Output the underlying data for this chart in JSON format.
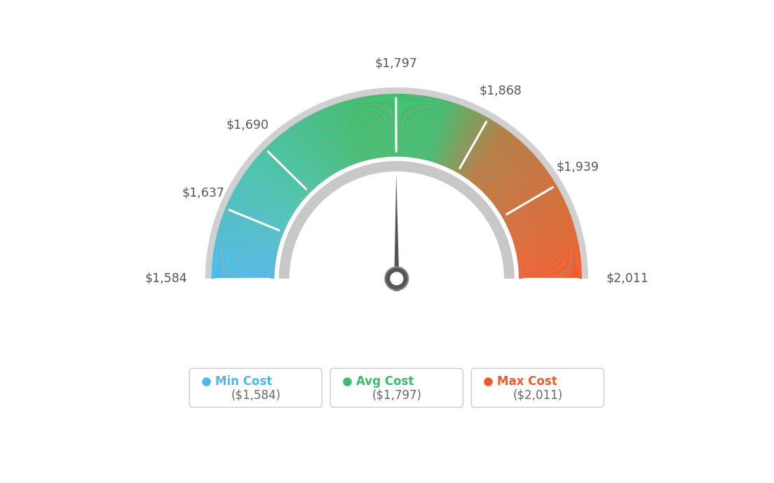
{
  "min_val": 1584,
  "avg_val": 1797,
  "max_val": 2011,
  "tick_labels": [
    "$1,584",
    "$1,637",
    "$1,690",
    "$1,797",
    "$1,868",
    "$1,939",
    "$2,011"
  ],
  "tick_values": [
    1584,
    1637,
    1690,
    1797,
    1868,
    1939,
    2011
  ],
  "legend": [
    {
      "label": "Min Cost",
      "value": "($1,584)",
      "color": "#4db8e8"
    },
    {
      "label": "Avg Cost",
      "value": "($1,797)",
      "color": "#3dbb6b"
    },
    {
      "label": "Max Cost",
      "value": "($2,011)",
      "color": "#f05a28"
    }
  ],
  "bg_color": "#ffffff",
  "needle_value": 1797,
  "colors_gradient": [
    [
      0.0,
      [
        77,
        184,
        232
      ]
    ],
    [
      0.2,
      [
        70,
        195,
        175
      ]
    ],
    [
      0.42,
      [
        61,
        187,
        107
      ]
    ],
    [
      0.58,
      [
        61,
        187,
        107
      ]
    ],
    [
      0.7,
      [
        180,
        120,
        60
      ]
    ],
    [
      1.0,
      [
        240,
        90,
        40
      ]
    ]
  ]
}
